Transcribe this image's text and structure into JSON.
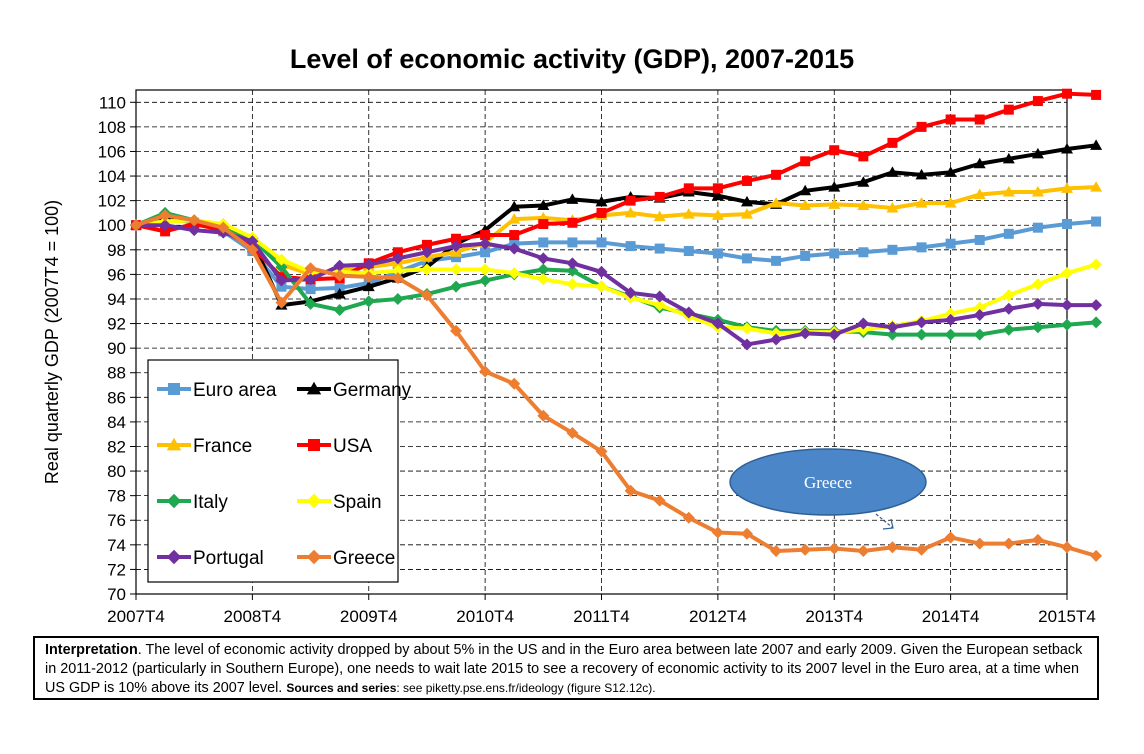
{
  "chart_data": {
    "type": "line",
    "title": "Level of economic activity (GDP), 2007-2015",
    "ylabel": "Real quarterly GDP (2007T4 = 100)",
    "xlabel": "",
    "ylim": [
      70,
      111
    ],
    "y_ticks": [
      70,
      72,
      74,
      76,
      78,
      80,
      82,
      84,
      86,
      88,
      90,
      92,
      94,
      96,
      98,
      100,
      102,
      104,
      106,
      108,
      110
    ],
    "x_tick_labels": [
      "2007T4",
      "2008T4",
      "2009T4",
      "2010T4",
      "2011T4",
      "2012T4",
      "2013T4",
      "2014T4",
      "2015T4"
    ],
    "x_quarters_per_tick": 4,
    "grid": true,
    "legend_position": "bottom-left",
    "series": [
      {
        "name": "Euro area",
        "color": "#5b9bd5",
        "marker": "square",
        "values": [
          100,
          100.6,
          100.2,
          99.5,
          97.9,
          95.0,
          94.8,
          94.9,
          95.3,
          96.2,
          97.1,
          97.4,
          97.8,
          98.5,
          98.6,
          98.6,
          98.6,
          98.3,
          98.1,
          97.9,
          97.7,
          97.3,
          97.1,
          97.5,
          97.7,
          97.8,
          98.0,
          98.2,
          98.5,
          98.8,
          99.3,
          99.8,
          100.1,
          100.3
        ]
      },
      {
        "name": "Germany",
        "color": "#000000",
        "marker": "triangle",
        "values": [
          100,
          100.8,
          100.3,
          100.1,
          98.7,
          93.5,
          93.8,
          94.4,
          95.0,
          95.7,
          96.6,
          98.5,
          99.6,
          101.5,
          101.6,
          102.1,
          101.9,
          102.3,
          102.2,
          102.7,
          102.4,
          101.9,
          101.7,
          102.8,
          103.1,
          103.5,
          104.3,
          104.1,
          104.3,
          105.0,
          105.4,
          105.8,
          106.2,
          106.5
        ]
      },
      {
        "name": "France",
        "color": "#ffc000",
        "marker": "triangle",
        "values": [
          100,
          100.3,
          100.4,
          100.0,
          98.9,
          96.8,
          96.0,
          96.4,
          96.6,
          96.9,
          97.4,
          97.8,
          98.6,
          100.5,
          100.6,
          100.4,
          100.8,
          101.0,
          100.7,
          100.9,
          100.8,
          100.9,
          101.8,
          101.6,
          101.7,
          101.6,
          101.4,
          101.8,
          101.8,
          102.5,
          102.7,
          102.7,
          103.0,
          103.1
        ]
      },
      {
        "name": "USA",
        "color": "#ff0000",
        "marker": "square",
        "values": [
          100,
          99.5,
          100.1,
          99.6,
          98.2,
          95.8,
          95.6,
          95.7,
          96.9,
          97.8,
          98.4,
          98.9,
          99.2,
          99.2,
          100.1,
          100.2,
          101.0,
          102.0,
          102.3,
          103.0,
          103.0,
          103.6,
          104.1,
          105.2,
          106.1,
          105.6,
          106.7,
          108.0,
          108.6,
          108.6,
          109.4,
          110.1,
          110.7,
          110.6
        ]
      },
      {
        "name": "Italy",
        "color": "#1fa84f",
        "marker": "diamond",
        "values": [
          100,
          101.0,
          100.4,
          99.8,
          98.9,
          96.6,
          93.6,
          93.1,
          93.8,
          94.0,
          94.4,
          95.0,
          95.5,
          96.0,
          96.4,
          96.3,
          95.0,
          94.2,
          93.3,
          92.8,
          92.3,
          91.7,
          91.4,
          91.4,
          91.4,
          91.3,
          91.1,
          91.1,
          91.1,
          91.1,
          91.5,
          91.7,
          91.9,
          92.1
        ]
      },
      {
        "name": "Spain",
        "color": "#ffff00",
        "marker": "diamond",
        "values": [
          100,
          100.3,
          100.4,
          100.1,
          99.0,
          97.2,
          96.2,
          96.2,
          96.1,
          96.3,
          96.4,
          96.4,
          96.4,
          96.1,
          95.6,
          95.2,
          95.0,
          94.1,
          93.5,
          92.6,
          91.7,
          91.6,
          91.2,
          91.3,
          91.3,
          91.5,
          91.8,
          92.2,
          92.8,
          93.3,
          94.3,
          95.2,
          96.1,
          96.8
        ]
      },
      {
        "name": "Portugal",
        "color": "#7030a0",
        "marker": "diamond",
        "values": [
          100,
          100.0,
          99.6,
          99.4,
          98.7,
          95.5,
          95.6,
          96.7,
          96.8,
          97.3,
          97.8,
          98.3,
          98.5,
          98.1,
          97.3,
          96.9,
          96.2,
          94.5,
          94.2,
          92.9,
          92.0,
          90.3,
          90.7,
          91.2,
          91.1,
          92.0,
          91.7,
          92.1,
          92.3,
          92.7,
          93.2,
          93.6,
          93.5,
          93.5
        ]
      },
      {
        "name": "Greece",
        "color": "#ed7d31",
        "marker": "diamond",
        "values": [
          100,
          100.8,
          100.4,
          99.8,
          98.0,
          93.7,
          96.5,
          95.9,
          95.8,
          95.7,
          94.3,
          91.4,
          88.1,
          87.1,
          84.5,
          83.1,
          81.6,
          78.4,
          77.6,
          76.2,
          75.0,
          74.9,
          73.5,
          73.6,
          73.7,
          73.5,
          73.8,
          73.6,
          74.6,
          74.1,
          74.1,
          74.4,
          73.8,
          73.1
        ]
      }
    ],
    "annotations": [
      {
        "text": "Greece"
      }
    ]
  },
  "interpretation": {
    "lead": "Interpretation",
    "text": ". The level of economic activity dropped by about 5% in the US and in the Euro area between late 2007 and early 2009. Given the European setback in 2011-2012 (particularly in Southern Europe), one needs to wait late 2015 to see a recovery of economic activity to its 2007 level in the Euro area, at a time when US GDP is 10% above its 2007 level. ",
    "sources_label": "Sources and series",
    "sources_text": ": see piketty.pse.ens.fr/ideology (figure S12.12c)."
  }
}
